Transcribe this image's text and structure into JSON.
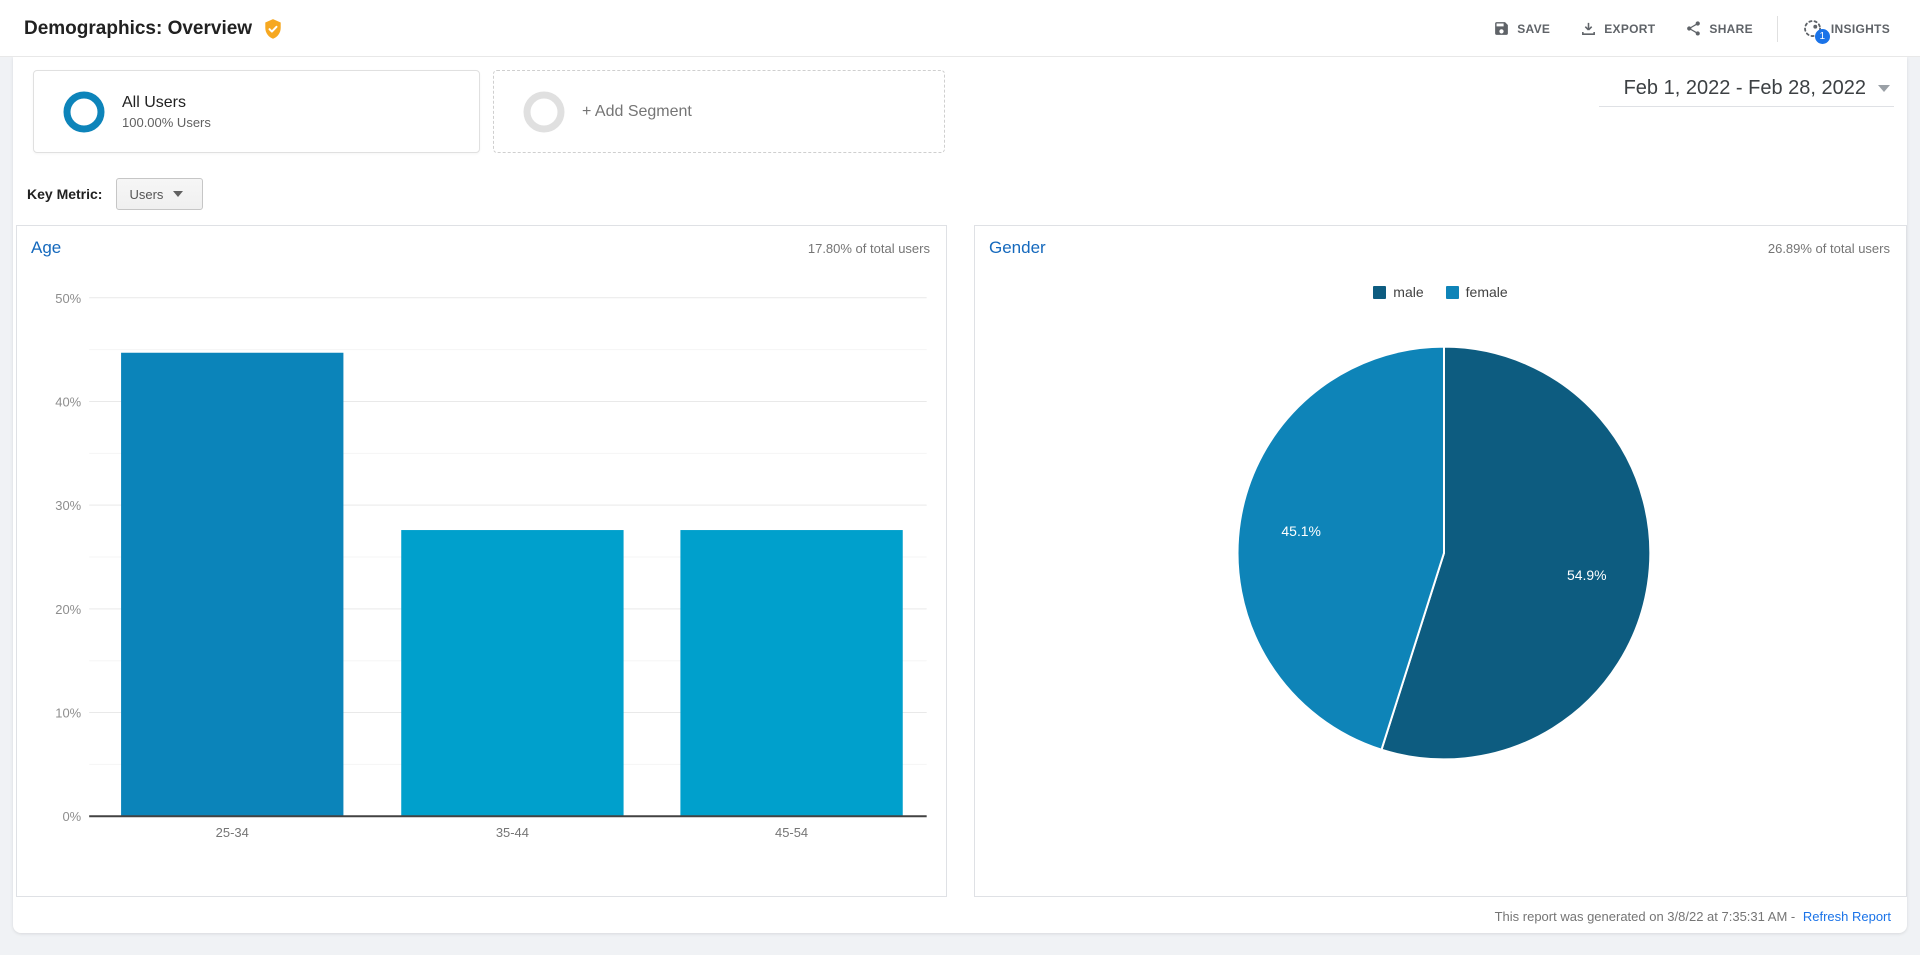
{
  "header": {
    "title": "Demographics: Overview",
    "badge_icon": "verified-shield-icon",
    "actions": [
      {
        "label": "SAVE",
        "icon": "save-icon"
      },
      {
        "label": "EXPORT",
        "icon": "export-download-icon"
      },
      {
        "label": "SHARE",
        "icon": "share-icon"
      },
      {
        "label": "INSIGHTS",
        "icon": "insights-icon",
        "badge_count": "1"
      }
    ]
  },
  "segments": {
    "all_users": {
      "name": "All Users",
      "detail": "100.00% Users"
    },
    "add_segment": {
      "label": "+ Add Segment"
    }
  },
  "date_range": {
    "label": "Feb 1, 2022 - Feb 28, 2022"
  },
  "key_metric": {
    "label": "Key Metric:",
    "selected": "Users"
  },
  "footer": {
    "generated_text": "This report was generated on 3/8/22 at 7:35:31 AM -",
    "refresh_label": "Refresh Report"
  },
  "colors": {
    "accent_blue": "#1569bd",
    "link_blue": "#1a73e8",
    "segment_ring": "#0d84ba",
    "bar_highlight": "#0b84ba",
    "bar_normal": "#00a0cc",
    "pie_male": "#0d5c80",
    "pie_female": "#0e84b8"
  },
  "chart_data": [
    {
      "type": "bar",
      "title": "Age",
      "subtitle": "17.80% of total users",
      "categories": [
        "25-34",
        "35-44",
        "45-54"
      ],
      "values": [
        44.7,
        27.6,
        27.6
      ],
      "bar_colors": [
        "#0b84ba",
        "#00a0cc",
        "#00a0cc"
      ],
      "ylabel": "",
      "xlabel": "",
      "ylim": [
        0,
        50
      ],
      "ytick_step": 10,
      "grid": true,
      "ytick_suffix": "%"
    },
    {
      "type": "pie",
      "title": "Gender",
      "subtitle": "26.89% of total users",
      "legend_position": "top",
      "slices": [
        {
          "name": "male",
          "value": 54.9,
          "label": "54.9%",
          "color": "#0d5c80"
        },
        {
          "name": "female",
          "value": 45.1,
          "label": "45.1%",
          "color": "#0e84b8"
        }
      ]
    }
  ]
}
